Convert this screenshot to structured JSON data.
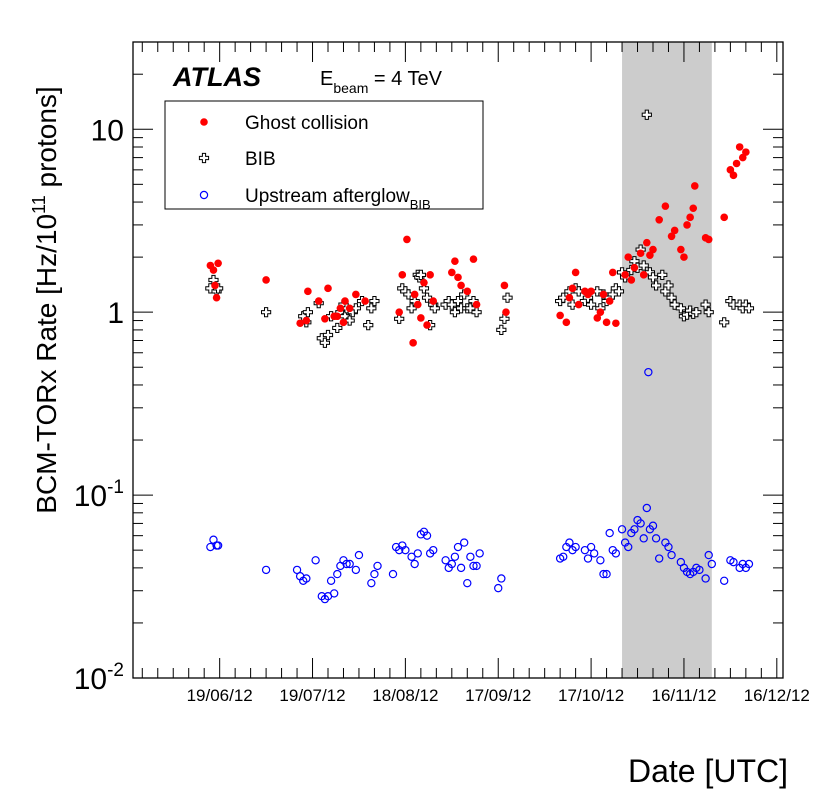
{
  "chart_data": {
    "type": "scatter",
    "experiment_label": "ATLAS",
    "beam_label_prefix": "E",
    "beam_label_sub": "beam",
    "beam_label_value": " = 4 TeV",
    "ylabel_prefix": "BCM-TORx Rate [Hz/10",
    "ylabel_sup": "11",
    "ylabel_suffix": " protons]",
    "xlabel": "Date [UTC]",
    "y_scale": "log",
    "ylim": [
      0.01,
      30
    ],
    "xlim_days": [
      -28,
      182
    ],
    "x_reference_date": "19/06/12",
    "x_tick_labels": [
      "19/06/12",
      "19/07/12",
      "18/08/12",
      "17/09/12",
      "17/10/12",
      "16/11/12",
      "16/12/12"
    ],
    "x_tick_days": [
      0,
      30,
      60,
      90,
      120,
      150,
      180
    ],
    "y_tick_labels": [
      {
        "base": "10",
        "exp": "-2",
        "value": 0.01
      },
      {
        "base": "10",
        "exp": "-1",
        "value": 0.1
      },
      {
        "base": "1",
        "exp": "",
        "value": 1
      },
      {
        "base": "10",
        "exp": "",
        "value": 10
      }
    ],
    "shaded_region_days": [
      130,
      159
    ],
    "shaded_region_color": "#cccccc",
    "legend_position": "top-left",
    "series": [
      {
        "name": "Ghost collision",
        "name_sub": "",
        "marker": "filled-circle",
        "color": "#ff0000",
        "points": [
          [
            -3,
            1.8
          ],
          [
            -2,
            1.7
          ],
          [
            -1.5,
            1.4
          ],
          [
            -1,
            1.2
          ],
          [
            -0.5,
            1.85
          ],
          [
            15,
            1.5
          ],
          [
            26,
            0.87
          ],
          [
            28,
            0.9
          ],
          [
            28.5,
            1.3
          ],
          [
            32,
            1.15
          ],
          [
            34,
            0.92
          ],
          [
            35,
            1.35
          ],
          [
            37,
            0.95
          ],
          [
            38,
            0.95
          ],
          [
            39,
            1.05
          ],
          [
            40,
            0.88
          ],
          [
            40.5,
            1.15
          ],
          [
            42,
            1.05
          ],
          [
            44,
            1.25
          ],
          [
            47,
            1.15
          ],
          [
            58,
            1.0
          ],
          [
            59,
            1.6
          ],
          [
            60.5,
            2.5
          ],
          [
            62.5,
            0.68
          ],
          [
            63,
            1.25
          ],
          [
            64,
            1.1
          ],
          [
            65,
            0.93
          ],
          [
            66,
            1.45
          ],
          [
            67,
            0.85
          ],
          [
            68,
            1.6
          ],
          [
            69,
            1.15
          ],
          [
            75,
            1.65
          ],
          [
            76,
            1.9
          ],
          [
            77,
            1.55
          ],
          [
            78,
            1.4
          ],
          [
            80,
            1.3
          ],
          [
            82,
            1.95
          ],
          [
            83,
            1.1
          ],
          [
            92,
            1.4
          ],
          [
            92.5,
            1.0
          ],
          [
            110,
            0.96
          ],
          [
            112,
            0.88
          ],
          [
            113,
            1.2
          ],
          [
            114,
            1.35
          ],
          [
            115,
            1.65
          ],
          [
            116,
            1.1
          ],
          [
            118,
            1.3
          ],
          [
            119,
            1.25
          ],
          [
            120,
            1.3
          ],
          [
            122,
            0.93
          ],
          [
            123,
            1.0
          ],
          [
            124,
            1.25
          ],
          [
            125,
            0.88
          ],
          [
            126,
            1.15
          ],
          [
            127,
            1.65
          ],
          [
            128,
            0.87
          ],
          [
            131,
            1.6
          ],
          [
            132,
            2.0
          ],
          [
            133,
            1.5
          ],
          [
            134,
            1.75
          ],
          [
            136,
            2.1
          ],
          [
            137,
            1.6
          ],
          [
            138,
            2.4
          ],
          [
            139,
            2.05
          ],
          [
            140,
            2.2
          ],
          [
            142,
            3.2
          ],
          [
            144,
            3.8
          ],
          [
            146,
            2.6
          ],
          [
            147,
            2.8
          ],
          [
            149,
            2.2
          ],
          [
            150,
            2.0
          ],
          [
            151,
            3.0
          ],
          [
            152,
            3.3
          ],
          [
            153,
            3.7
          ],
          [
            153.5,
            4.9
          ],
          [
            157,
            2.55
          ],
          [
            158,
            2.5
          ],
          [
            163,
            3.3
          ],
          [
            165,
            6.0
          ],
          [
            166,
            5.6
          ],
          [
            167,
            6.5
          ],
          [
            168,
            8.0
          ],
          [
            169,
            7.0
          ],
          [
            170,
            7.5
          ]
        ]
      },
      {
        "name": "BIB",
        "name_sub": "",
        "marker": "open-cross",
        "color": "#000000",
        "points": [
          [
            -3,
            1.35
          ],
          [
            -2,
            1.5
          ],
          [
            -1,
            1.3
          ],
          [
            -0.5,
            1.35
          ],
          [
            15,
            1.0
          ],
          [
            27,
            0.95
          ],
          [
            28,
            0.88
          ],
          [
            28.5,
            1.0
          ],
          [
            32,
            1.12
          ],
          [
            33,
            0.72
          ],
          [
            34,
            0.68
          ],
          [
            35,
            0.75
          ],
          [
            36,
            0.95
          ],
          [
            38,
            0.82
          ],
          [
            39,
            1.0
          ],
          [
            40,
            1.1
          ],
          [
            40.5,
            0.95
          ],
          [
            41,
            1.05
          ],
          [
            42,
            0.9
          ],
          [
            43,
            1.0
          ],
          [
            44,
            1.05
          ],
          [
            46,
            1.15
          ],
          [
            48,
            0.85
          ],
          [
            49,
            1.05
          ],
          [
            50,
            1.15
          ],
          [
            58,
            0.92
          ],
          [
            59,
            1.35
          ],
          [
            60,
            1.3
          ],
          [
            61,
            1.25
          ],
          [
            62,
            1.05
          ],
          [
            63,
            1.15
          ],
          [
            64,
            1.6
          ],
          [
            64.5,
            1.55
          ],
          [
            65,
            1.6
          ],
          [
            66,
            1.35
          ],
          [
            67,
            1.2
          ],
          [
            68,
            0.85
          ],
          [
            69,
            1.1
          ],
          [
            69.5,
            1.05
          ],
          [
            73,
            1.1
          ],
          [
            74,
            1.15
          ],
          [
            75,
            1.1
          ],
          [
            76,
            1.0
          ],
          [
            77,
            1.15
          ],
          [
            78,
            1.05
          ],
          [
            79,
            1.25
          ],
          [
            80,
            1.05
          ],
          [
            81,
            1.05
          ],
          [
            82,
            1.15
          ],
          [
            83,
            1.0
          ],
          [
            91,
            0.8
          ],
          [
            92,
            0.92
          ],
          [
            93,
            1.2
          ],
          [
            110,
            1.15
          ],
          [
            111,
            1.2
          ],
          [
            113,
            1.3
          ],
          [
            114,
            1.1
          ],
          [
            115,
            1.35
          ],
          [
            116,
            1.3
          ],
          [
            118,
            1.15
          ],
          [
            119,
            1.2
          ],
          [
            120,
            1.1
          ],
          [
            122,
            1.3
          ],
          [
            123,
            1.05
          ],
          [
            124,
            1.25
          ],
          [
            125,
            1.15
          ],
          [
            126,
            1.2
          ],
          [
            127,
            1.25
          ],
          [
            128,
            1.35
          ],
          [
            129,
            1.3
          ],
          [
            130,
            1.65
          ],
          [
            131,
            1.55
          ],
          [
            133,
            1.7
          ],
          [
            134,
            1.9
          ],
          [
            135,
            1.75
          ],
          [
            136,
            2.2
          ],
          [
            137,
            1.8
          ],
          [
            138,
            12.0
          ],
          [
            139,
            1.65
          ],
          [
            140,
            1.55
          ],
          [
            141,
            1.4
          ],
          [
            143,
            1.6
          ],
          [
            144,
            1.3
          ],
          [
            145,
            1.4
          ],
          [
            146,
            1.2
          ],
          [
            147,
            1.1
          ],
          [
            149,
            1.05
          ],
          [
            150,
            0.95
          ],
          [
            151,
            0.97
          ],
          [
            152,
            1.02
          ],
          [
            153,
            0.98
          ],
          [
            154,
            1.0
          ],
          [
            157,
            1.1
          ],
          [
            158,
            1.0
          ],
          [
            163,
            0.88
          ],
          [
            165,
            1.15
          ],
          [
            166,
            1.1
          ],
          [
            168,
            1.1
          ],
          [
            169,
            1.05
          ],
          [
            170,
            1.1
          ],
          [
            171,
            1.05
          ]
        ]
      },
      {
        "name": "Upstream afterglow",
        "name_sub": "BIB",
        "marker": "open-circle",
        "color": "#0000ff",
        "points": [
          [
            -3,
            0.052
          ],
          [
            -2,
            0.057
          ],
          [
            -1,
            0.053
          ],
          [
            -0.5,
            0.053
          ],
          [
            15,
            0.039
          ],
          [
            25,
            0.039
          ],
          [
            26,
            0.036
          ],
          [
            27,
            0.034
          ],
          [
            28,
            0.035
          ],
          [
            31,
            0.044
          ],
          [
            33,
            0.028
          ],
          [
            34,
            0.027
          ],
          [
            35,
            0.028
          ],
          [
            36,
            0.034
          ],
          [
            37,
            0.029
          ],
          [
            38,
            0.037
          ],
          [
            39,
            0.041
          ],
          [
            40,
            0.044
          ],
          [
            41,
            0.042
          ],
          [
            42,
            0.042
          ],
          [
            44,
            0.039
          ],
          [
            45,
            0.047
          ],
          [
            49,
            0.033
          ],
          [
            50,
            0.037
          ],
          [
            51,
            0.041
          ],
          [
            56,
            0.037
          ],
          [
            57,
            0.052
          ],
          [
            58,
            0.05
          ],
          [
            59,
            0.053
          ],
          [
            60,
            0.05
          ],
          [
            62,
            0.046
          ],
          [
            63,
            0.042
          ],
          [
            64,
            0.048
          ],
          [
            65,
            0.061
          ],
          [
            66,
            0.063
          ],
          [
            67,
            0.06
          ],
          [
            68,
            0.048
          ],
          [
            69,
            0.05
          ],
          [
            73,
            0.044
          ],
          [
            74,
            0.04
          ],
          [
            75,
            0.042
          ],
          [
            76,
            0.046
          ],
          [
            77,
            0.052
          ],
          [
            78,
            0.04
          ],
          [
            79,
            0.055
          ],
          [
            80,
            0.033
          ],
          [
            81,
            0.046
          ],
          [
            82,
            0.041
          ],
          [
            83,
            0.041
          ],
          [
            84,
            0.048
          ],
          [
            90,
            0.031
          ],
          [
            91,
            0.035
          ],
          [
            110,
            0.045
          ],
          [
            111,
            0.046
          ],
          [
            112,
            0.052
          ],
          [
            113,
            0.055
          ],
          [
            114,
            0.05
          ],
          [
            115,
            0.052
          ],
          [
            118,
            0.05
          ],
          [
            119,
            0.045
          ],
          [
            120,
            0.052
          ],
          [
            121,
            0.048
          ],
          [
            123,
            0.044
          ],
          [
            124,
            0.037
          ],
          [
            125,
            0.037
          ],
          [
            126,
            0.062
          ],
          [
            127,
            0.05
          ],
          [
            128,
            0.048
          ],
          [
            130,
            0.065
          ],
          [
            131,
            0.055
          ],
          [
            132,
            0.052
          ],
          [
            133,
            0.062
          ],
          [
            134,
            0.065
          ],
          [
            135,
            0.073
          ],
          [
            136,
            0.07
          ],
          [
            137,
            0.058
          ],
          [
            138,
            0.085
          ],
          [
            138.5,
            0.47
          ],
          [
            139,
            0.065
          ],
          [
            140,
            0.068
          ],
          [
            141,
            0.058
          ],
          [
            142,
            0.045
          ],
          [
            144,
            0.055
          ],
          [
            145,
            0.052
          ],
          [
            146,
            0.047
          ],
          [
            149,
            0.043
          ],
          [
            150,
            0.04
          ],
          [
            151,
            0.038
          ],
          [
            152,
            0.037
          ],
          [
            153,
            0.038
          ],
          [
            154,
            0.04
          ],
          [
            155,
            0.039
          ],
          [
            157,
            0.035
          ],
          [
            158,
            0.047
          ],
          [
            159,
            0.042
          ],
          [
            163,
            0.034
          ],
          [
            165,
            0.044
          ],
          [
            166,
            0.043
          ],
          [
            168,
            0.04
          ],
          [
            169,
            0.042
          ],
          [
            170,
            0.04
          ],
          [
            171,
            0.042
          ]
        ]
      }
    ]
  }
}
